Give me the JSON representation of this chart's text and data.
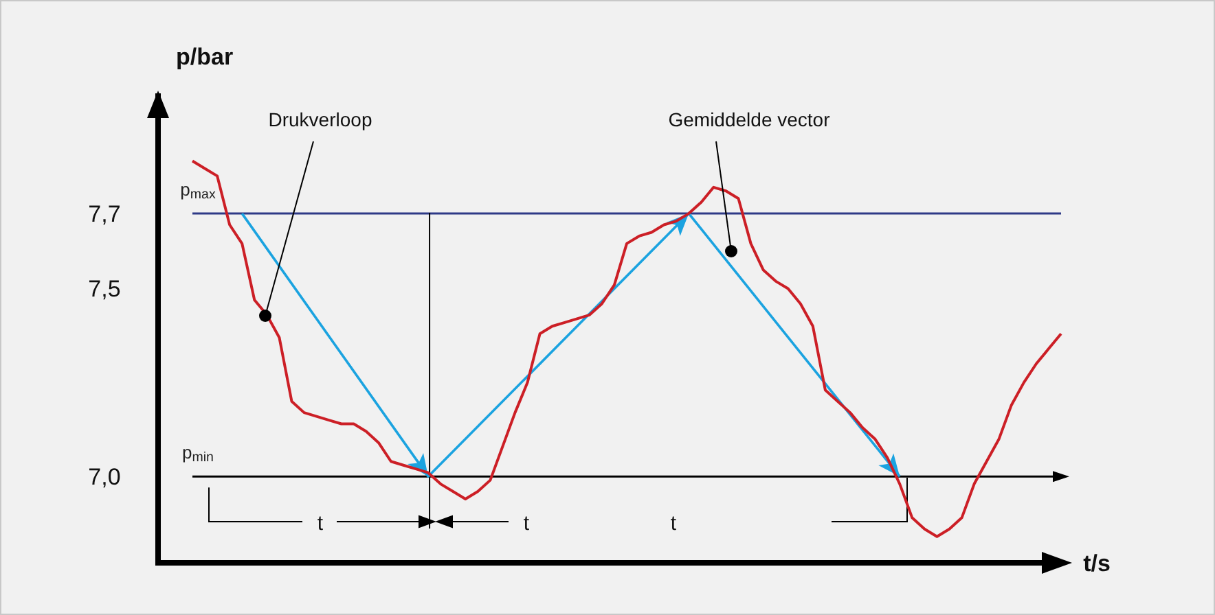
{
  "chart_data": {
    "type": "line",
    "ylabel": "p/bar",
    "categories": [
      null,
      null,
      null,
      null,
      null,
      null,
      null,
      null,
      null,
      null,
      null,
      null,
      null,
      null,
      null,
      null,
      null,
      null,
      null,
      null,
      null,
      null,
      null,
      null,
      null,
      null,
      null,
      null,
      null,
      null,
      null,
      null,
      null,
      null,
      null,
      null,
      null,
      null,
      null,
      null,
      null,
      null,
      null,
      null,
      null,
      null,
      null,
      null,
      null,
      null,
      null,
      null,
      null,
      null,
      null,
      null,
      null,
      null,
      null,
      null,
      null,
      null,
      null,
      null,
      null,
      null,
      null,
      null,
      null,
      null,
      null
    ],
    "series": [
      {
        "color": "#cc1f26",
        "values": [
          7.84,
          7.82,
          7.8,
          7.67,
          7.62,
          7.47,
          7.43,
          7.37,
          7.2,
          7.17,
          7.16,
          7.15,
          7.14,
          7.14,
          7.12,
          7.09,
          7.04,
          7.03,
          7.02,
          7.01,
          6.98,
          6.96,
          6.94,
          6.96,
          6.99,
          7.08,
          7.17,
          7.25,
          7.38,
          7.4,
          7.41,
          7.42,
          7.43,
          7.46,
          7.51,
          7.62,
          7.64,
          7.65,
          7.67,
          7.68,
          7.7,
          7.73,
          7.77,
          7.76,
          7.74,
          7.62,
          7.55,
          7.52,
          7.5,
          7.46,
          7.4,
          7.23,
          7.2,
          7.17,
          7.13,
          7.1,
          7.05,
          6.98,
          6.89,
          6.86,
          6.84,
          6.86,
          6.89,
          6.98,
          7.04,
          7.1,
          7.19,
          7.25,
          7.3,
          7.34,
          7.38
        ]
      }
    ],
    "ylim": [
      6.77,
      8.02
    ],
    "yticks": [
      {
        "value": 7.0,
        "label": "7,0"
      },
      {
        "value": 7.5,
        "label": "7,5"
      },
      {
        "value": 7.7,
        "label": "7,7"
      }
    ],
    "ref_lines": [
      {
        "axis": "y",
        "value": 7.7,
        "label": "p$_{max}$",
        "color": "#2e3a87"
      },
      {
        "axis": "y",
        "value": 7.0,
        "label": "p$_{min}$",
        "color": "#000000"
      }
    ],
    "annotations": [
      "Drukverloop",
      "Gemiddelde vector",
      "t",
      "t",
      "t",
      "t/s"
    ],
    "tick_labels": "y",
    "grid": false,
    "marker": "none",
    "line_style": "solid"
  }
}
